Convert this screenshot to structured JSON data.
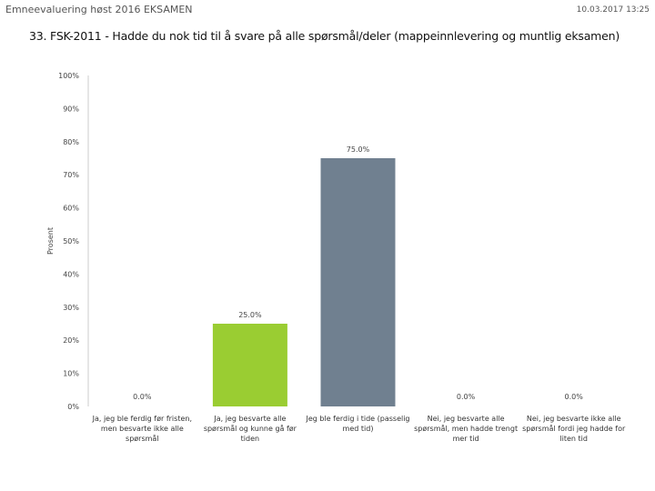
{
  "header": {
    "left": "Emneevaluering høst 2016 EKSAMEN",
    "right": "10.03.2017 13:25"
  },
  "chart_data": {
    "type": "bar",
    "title": "33. FSK-2011 - Hadde du nok tid til å svare på alle spørsmål/deler (mappeinnlevering og muntlig eksamen)",
    "ylabel": "Prosent",
    "xlabel": "",
    "ylim": [
      0,
      100
    ],
    "yticks": [
      "0%",
      "10%",
      "20%",
      "30%",
      "40%",
      "50%",
      "60%",
      "70%",
      "80%",
      "90%",
      "100%"
    ],
    "grid": false,
    "categories": [
      [
        "Ja, jeg ble ferdig før fristen,",
        "men besvarte ikke alle",
        "spørsmål"
      ],
      [
        "Ja, jeg besvarte alle",
        "spørsmål og kunne gå før",
        "tiden"
      ],
      [
        "Jeg ble ferdig i tide (passelig",
        "med tid)"
      ],
      [
        "Nei, jeg besvarte alle",
        "spørsmål, men hadde trengt",
        "mer tid"
      ],
      [
        "Nei, jeg besvarte ikke alle",
        "spørsmål fordi jeg hadde for",
        "liten tid"
      ]
    ],
    "values": [
      0.0,
      25.0,
      75.0,
      0.0,
      0.0
    ],
    "value_labels": [
      "0.0%",
      "25.0%",
      "75.0%",
      "0.0%",
      "0.0%"
    ],
    "colors": [
      "#9acd32",
      "#9acd32",
      "#708090",
      "#708090",
      "#708090"
    ]
  }
}
